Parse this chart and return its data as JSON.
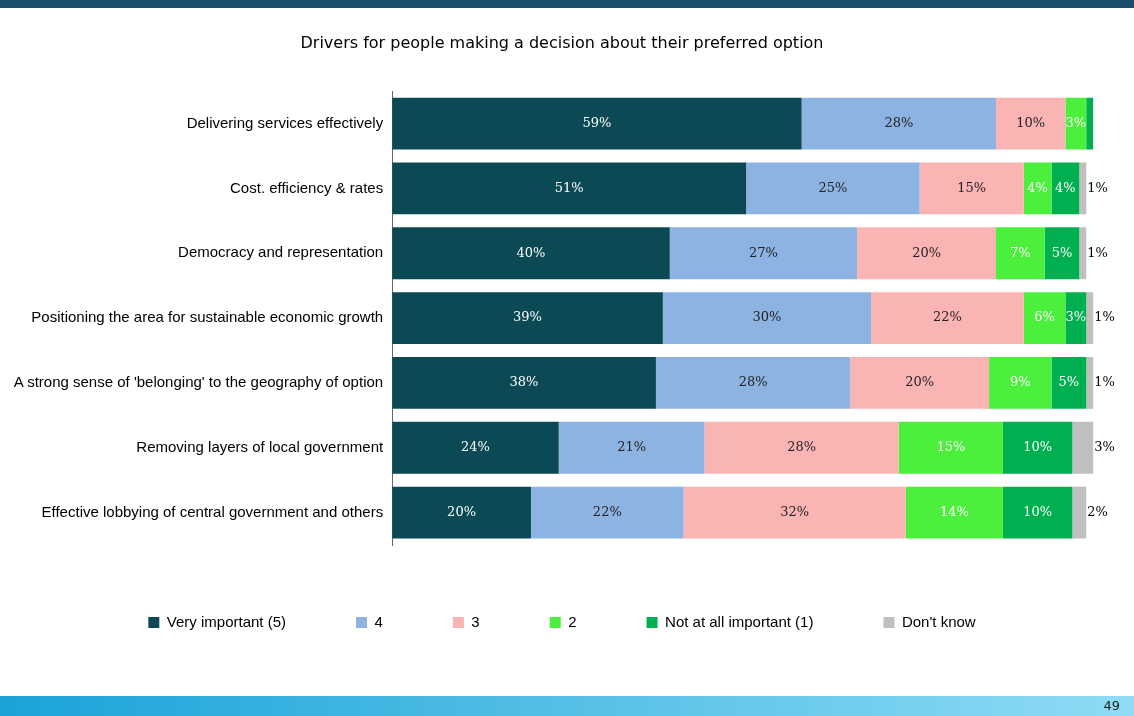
{
  "chart_data": {
    "type": "bar",
    "orientation": "horizontal",
    "stacked": true,
    "title": "Drivers for people making a decision about their preferred option",
    "categories": [
      "Delivering services effectively",
      "Cost. efficiency & rates",
      "Democracy and representation",
      "Positioning the area for sustainable economic growth",
      "A strong sense of 'belonging' to the geography of option",
      "Removing layers of local government",
      "Effective lobbying of central government and others"
    ],
    "series": [
      {
        "name": "Very important (5)",
        "color": "#0b4a55",
        "values": [
          59,
          51,
          40,
          39,
          38,
          24,
          20
        ],
        "value_labels": [
          "59%",
          "51%",
          "40%",
          "39%",
          "38%",
          "24%",
          "20%"
        ]
      },
      {
        "name": "4",
        "color": "#8db3e2",
        "values": [
          28,
          25,
          27,
          30,
          28,
          21,
          22
        ],
        "value_labels": [
          "28%",
          "25%",
          "27%",
          "30%",
          "28%",
          "21%",
          "22%"
        ]
      },
      {
        "name": "3",
        "color": "#fbb4b4",
        "values": [
          10,
          15,
          20,
          22,
          20,
          28,
          32
        ],
        "value_labels": [
          "10%",
          "15%",
          "20%",
          "22%",
          "20%",
          "28%",
          "32%"
        ]
      },
      {
        "name": "2",
        "color": "#4cf03c",
        "values": [
          3,
          4,
          7,
          6,
          9,
          15,
          14
        ],
        "value_labels": [
          "3%",
          "4%",
          "7%",
          "6%",
          "9%",
          "15%",
          "14%"
        ]
      },
      {
        "name": "Not at all important (1)",
        "color": "#00b050",
        "values": [
          1,
          4,
          5,
          3,
          5,
          10,
          10
        ],
        "value_labels": [
          null,
          "4%",
          "5%",
          "3%",
          "5%",
          "10%",
          "10%"
        ]
      },
      {
        "name": "Don't know",
        "color": "#bfbfbf",
        "values": [
          null,
          1,
          1,
          1,
          1,
          3,
          2
        ],
        "value_labels": [
          null,
          "1%",
          "1%",
          "1%",
          "1%",
          "3%",
          "2%"
        ]
      }
    ],
    "legend": "bottom",
    "grid": false,
    "tick_labels": "y",
    "annotations": [
      "49"
    ]
  }
}
